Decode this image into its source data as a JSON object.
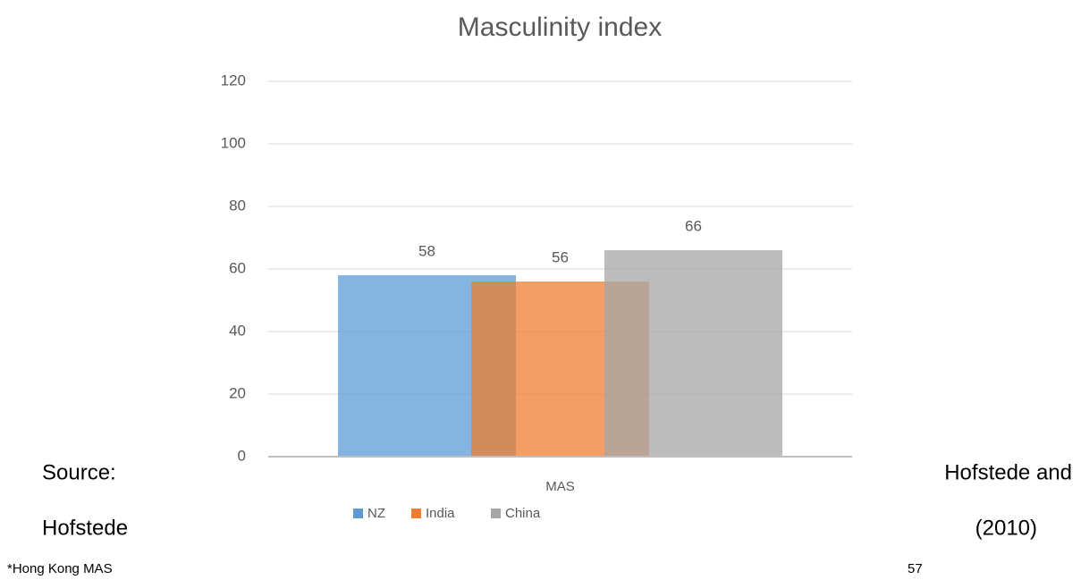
{
  "chart_data": {
    "type": "bar",
    "title": "Masculinity index",
    "categories": [
      "MAS"
    ],
    "series": [
      {
        "name": "NZ",
        "color": "#5b9bd5",
        "values": [
          58
        ]
      },
      {
        "name": "India",
        "color": "#ed7d31",
        "values": [
          56
        ]
      },
      {
        "name": "China",
        "color": "#a5a5a5",
        "values": [
          66
        ]
      }
    ],
    "ylim": [
      0,
      120
    ],
    "yticks": [
      0,
      20,
      40,
      60,
      80,
      100,
      120
    ],
    "grid": true,
    "legend": "bottom"
  },
  "document": {
    "source_left": [
      "Source:",
      "Hofstede"
    ],
    "source_right": [
      "Hofstede and",
      "(2010)"
    ],
    "footnote": "*Hong Kong MAS",
    "page_number": 57
  }
}
